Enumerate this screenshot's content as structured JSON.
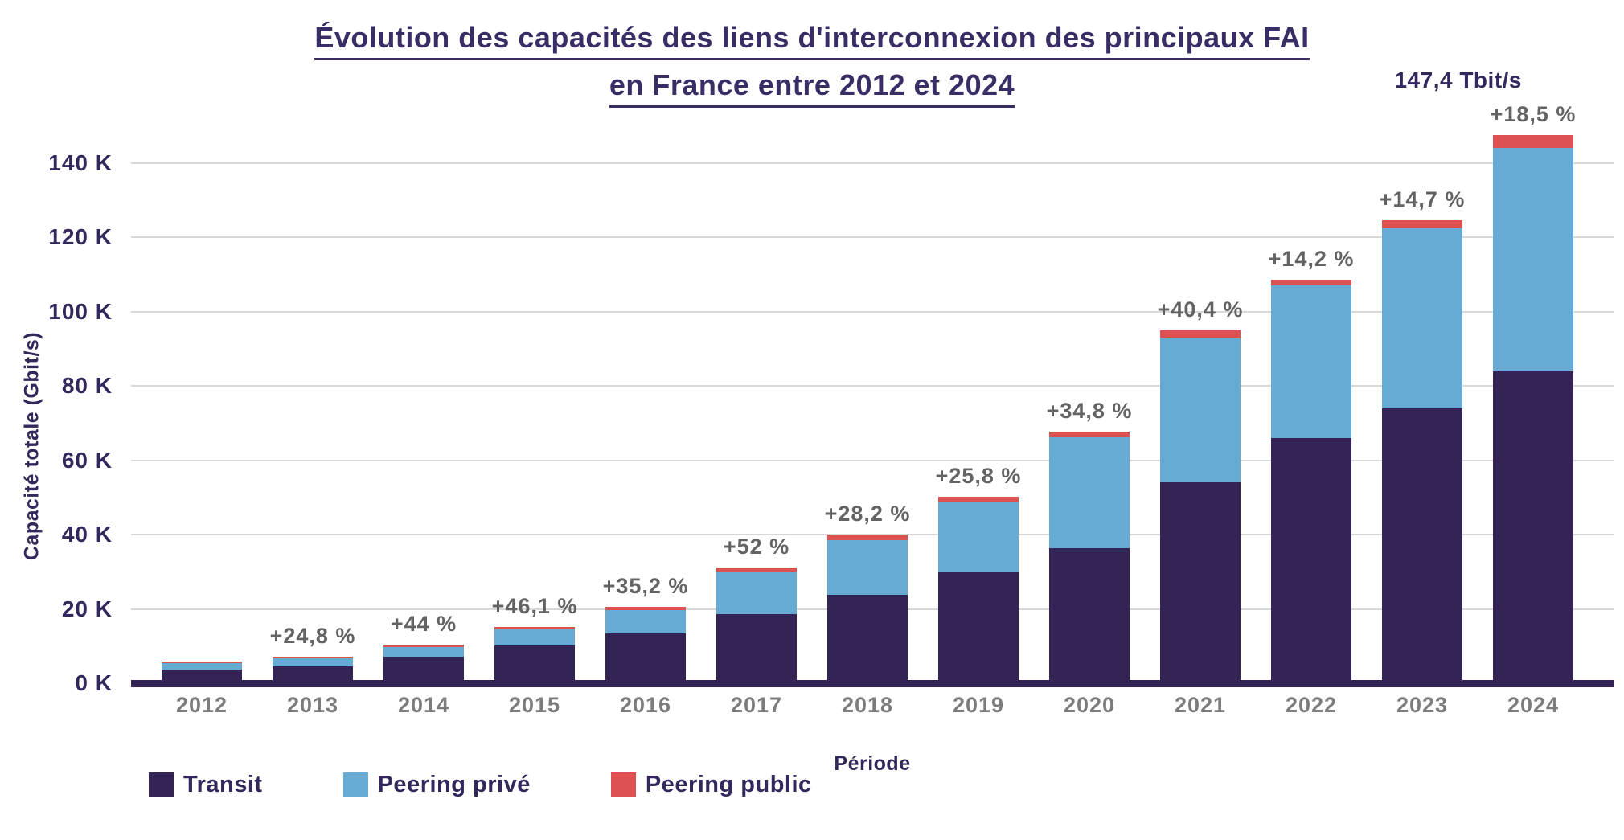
{
  "title": {
    "line1": "Évolution des capacités des liens d'interconnexion des principaux FAI",
    "line2": "en France entre 2012 et 2024"
  },
  "annotation": {
    "total_label": "147,4 Tbit/s"
  },
  "chart_data": {
    "type": "bar",
    "stacked": true,
    "title": "Évolution des capacités des liens d'interconnexion des principaux FAI en France entre 2012 et 2024",
    "xlabel": "Période",
    "ylabel": "Capacité totale (Gbit/s)",
    "unit_note": "values in thousands of Gbit/s (Tbit/s)",
    "ylim": [
      0,
      140
    ],
    "grid": true,
    "legend_position": "bottom-left",
    "y_ticks": [
      "0 K",
      "20 K",
      "40 K",
      "60 K",
      "80 K",
      "100 K",
      "120 K",
      "140 K"
    ],
    "categories": [
      "2012",
      "2013",
      "2014",
      "2015",
      "2016",
      "2017",
      "2018",
      "2019",
      "2020",
      "2021",
      "2022",
      "2023",
      "2024"
    ],
    "series": [
      {
        "name": "Transit",
        "color": "#342455",
        "values": [
          3.7,
          4.5,
          7.1,
          10.2,
          13.3,
          18.7,
          23.8,
          29.9,
          36.4,
          54.1,
          65.9,
          73.9,
          84.0
        ]
      },
      {
        "name": "Peering privé",
        "color": "#66abd4",
        "values": [
          1.6,
          2.2,
          2.6,
          4.2,
          6.4,
          11.2,
          14.7,
          18.9,
          29.8,
          38.9,
          41.1,
          48.4,
          60.1
        ]
      },
      {
        "name": "Peering public",
        "color": "#dd5152",
        "values": [
          0.5,
          0.5,
          0.7,
          0.8,
          0.8,
          1.2,
          1.4,
          1.4,
          1.5,
          2.0,
          1.5,
          2.2,
          3.3
        ]
      }
    ],
    "totals": [
      5.8,
      7.2,
      10.4,
      15.2,
      20.5,
      31.1,
      39.9,
      50.2,
      67.7,
      95.0,
      108.5,
      124.5,
      147.4
    ],
    "growth_labels": [
      "",
      "+24,8 %",
      "+44 %",
      "+46,1 %",
      "+35,2 %",
      "+52 %",
      "+28,2 %",
      "+25,8 %",
      "+34,8 %",
      "+40,4 %",
      "+14,2 %",
      "+14,7 %",
      "+18,5 %"
    ],
    "final_total_annotation": "147,4 Tbit/s"
  },
  "colors": {
    "transit": "#342455",
    "peering_prive": "#66abd4",
    "peering_public": "#dd5152",
    "title_text": "#3a2d66",
    "axis_text": "#33275c",
    "muted_text": "#636363",
    "year_text": "#7c7c7c",
    "gridline": "#d8d8d8",
    "background": "#ffffff"
  }
}
